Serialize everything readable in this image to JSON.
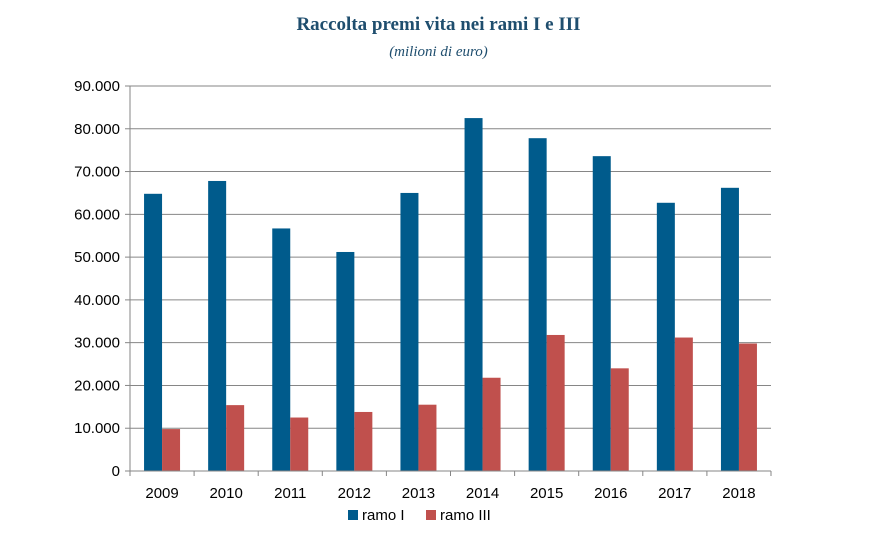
{
  "chart_data": {
    "type": "bar",
    "title": "Raccolta premi vita nei rami I e III",
    "subtitle": "(milioni di euro)",
    "categories": [
      "2009",
      "2010",
      "2011",
      "2012",
      "2013",
      "2014",
      "2015",
      "2016",
      "2017",
      "2018"
    ],
    "series": [
      {
        "name": "ramo I",
        "color": "#005b8c",
        "values": [
          64800,
          67800,
          56700,
          51200,
          65000,
          82500,
          77800,
          73600,
          62700,
          66200
        ]
      },
      {
        "name": "ramo III",
        "color": "#c0504d",
        "values": [
          9800,
          15400,
          12500,
          13800,
          15500,
          21800,
          31800,
          24000,
          31200,
          29800
        ]
      }
    ],
    "ylim": [
      0,
      90000
    ],
    "yticks": [
      0,
      10000,
      20000,
      30000,
      40000,
      50000,
      60000,
      70000,
      80000,
      90000
    ],
    "ytick_labels": [
      "0",
      "10.000",
      "20.000",
      "30.000",
      "40.000",
      "50.000",
      "60.000",
      "70.000",
      "80.000",
      "90.000"
    ],
    "grid": true,
    "legend_position": "bottom"
  }
}
